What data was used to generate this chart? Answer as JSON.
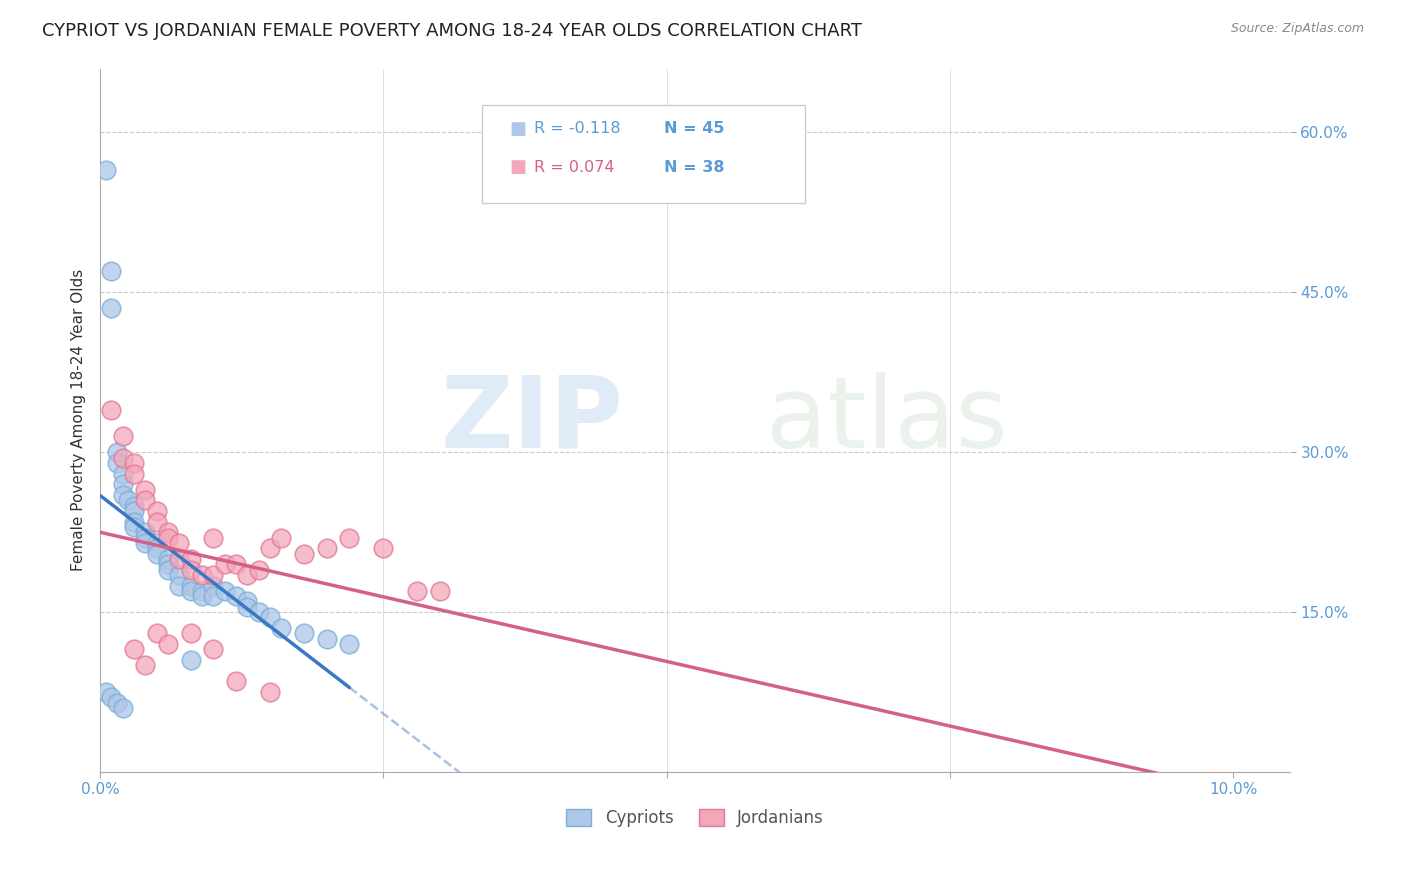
{
  "title": "CYPRIOT VS JORDANIAN FEMALE POVERTY AMONG 18-24 YEAR OLDS CORRELATION CHART",
  "source": "Source: ZipAtlas.com",
  "ylabel": "Female Poverty Among 18-24 Year Olds",
  "tick_color": "#5b9bd5",
  "watermark_zip": "ZIP",
  "watermark_atlas": "atlas",
  "cypriot_color": "#aec6e8",
  "cypriot_edge": "#7aafd4",
  "jordanian_color": "#f4a7b9",
  "jordanian_edge": "#e07898",
  "cypriot_line_color": "#3b78c3",
  "jordanian_line_color": "#d4608a",
  "cypriot_label": "Cypriots",
  "jordanian_label": "Jordanians",
  "R_cypriot": -0.118,
  "N_cypriot": 45,
  "R_jordanian": 0.074,
  "N_jordanian": 38,
  "cypriot_x": [
    0.0005,
    0.001,
    0.001,
    0.0015,
    0.0015,
    0.002,
    0.002,
    0.002,
    0.0025,
    0.003,
    0.003,
    0.003,
    0.003,
    0.004,
    0.004,
    0.004,
    0.005,
    0.005,
    0.005,
    0.006,
    0.006,
    0.006,
    0.007,
    0.007,
    0.008,
    0.008,
    0.009,
    0.009,
    0.01,
    0.01,
    0.011,
    0.012,
    0.013,
    0.013,
    0.014,
    0.015,
    0.016,
    0.018,
    0.02,
    0.022,
    0.0005,
    0.001,
    0.0015,
    0.002,
    0.008
  ],
  "cypriot_y": [
    0.565,
    0.47,
    0.435,
    0.3,
    0.29,
    0.28,
    0.27,
    0.26,
    0.255,
    0.25,
    0.245,
    0.235,
    0.23,
    0.225,
    0.22,
    0.215,
    0.215,
    0.21,
    0.205,
    0.2,
    0.195,
    0.19,
    0.185,
    0.175,
    0.175,
    0.17,
    0.17,
    0.165,
    0.175,
    0.165,
    0.17,
    0.165,
    0.16,
    0.155,
    0.15,
    0.145,
    0.135,
    0.13,
    0.125,
    0.12,
    0.075,
    0.07,
    0.065,
    0.06,
    0.105
  ],
  "jordanian_x": [
    0.001,
    0.002,
    0.002,
    0.003,
    0.003,
    0.004,
    0.004,
    0.005,
    0.005,
    0.006,
    0.006,
    0.007,
    0.007,
    0.008,
    0.008,
    0.009,
    0.01,
    0.01,
    0.011,
    0.012,
    0.013,
    0.014,
    0.015,
    0.016,
    0.018,
    0.02,
    0.022,
    0.025,
    0.028,
    0.03,
    0.003,
    0.004,
    0.005,
    0.006,
    0.008,
    0.01,
    0.012,
    0.015
  ],
  "jordanian_y": [
    0.34,
    0.315,
    0.295,
    0.29,
    0.28,
    0.265,
    0.255,
    0.245,
    0.235,
    0.225,
    0.22,
    0.215,
    0.2,
    0.2,
    0.19,
    0.185,
    0.22,
    0.185,
    0.195,
    0.195,
    0.185,
    0.19,
    0.21,
    0.22,
    0.205,
    0.21,
    0.22,
    0.21,
    0.17,
    0.17,
    0.115,
    0.1,
    0.13,
    0.12,
    0.13,
    0.115,
    0.085,
    0.075
  ],
  "xmin": 0.0,
  "xmax": 0.105,
  "ymin": 0.0,
  "ymax": 0.66,
  "yticks": [
    0.15,
    0.3,
    0.45,
    0.6
  ],
  "ytick_labels": [
    "15.0%",
    "30.0%",
    "45.0%",
    "60.0%"
  ],
  "xtick_positions": [
    0.0,
    0.025,
    0.05,
    0.075,
    0.1
  ],
  "xtick_labels": [
    "0.0%",
    "",
    "",
    "",
    "10.0%"
  ],
  "grid_color": "#cccccc",
  "background_color": "#ffffff"
}
